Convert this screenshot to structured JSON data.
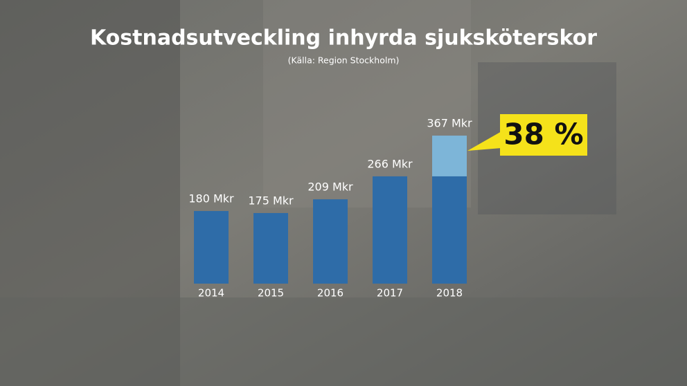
{
  "chart_data": {
    "type": "bar",
    "title": "Kostnadsutveckling inhyrda sjuksköterskor",
    "subtitle": "(Källa: Region Stockholm)",
    "categories": [
      "2014",
      "2015",
      "2016",
      "2017",
      "2018"
    ],
    "values": [
      180,
      175,
      209,
      266,
      367
    ],
    "value_labels": [
      "180 Mkr",
      "175 Mkr",
      "209 Mkr",
      "266 Mkr",
      "367 Mkr"
    ],
    "color": "#2e6ca8",
    "highlight_color": "#7db5d8",
    "annotation": "38 %"
  }
}
